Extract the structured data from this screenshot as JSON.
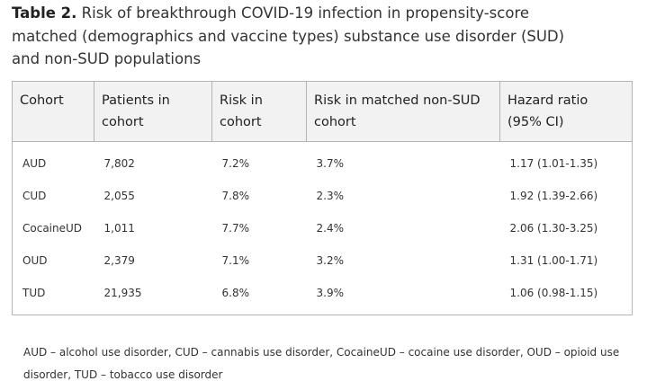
{
  "caption": {
    "label": "Table 2.",
    "text": " Risk of breakthrough COVID-19 infection in propensity-score matched (demographics and vaccine types) substance use disorder (SUD) and non-SUD populations"
  },
  "table": {
    "headers": [
      "Cohort",
      "Patients in cohort",
      "Risk in cohort",
      "Risk in matched non-SUD cohort",
      "Hazard ratio (95% CI)"
    ],
    "rows": [
      [
        "AUD",
        "7,802",
        "7.2%",
        "3.7%",
        "1.17 (1.01-1.35)"
      ],
      [
        "CUD",
        "2,055",
        "7.8%",
        "2.3%",
        "1.92 (1.39-2.66)"
      ],
      [
        "CocaineUD",
        "1,011",
        "7.7%",
        "2.4%",
        "2.06 (1.30-3.25)"
      ],
      [
        "OUD",
        "2,379",
        "7.1%",
        "3.2%",
        "1.31 (1.00-1.71)"
      ],
      [
        "TUD",
        "21,935",
        "6.8%",
        "3.9%",
        "1.06 (0.98-1.15)"
      ]
    ]
  },
  "footnote": "AUD – alcohol use disorder, CUD – cannabis use disorder, CocaineUD – cocaine use disorder, OUD – opioid use disorder, TUD – tobacco use disorder"
}
